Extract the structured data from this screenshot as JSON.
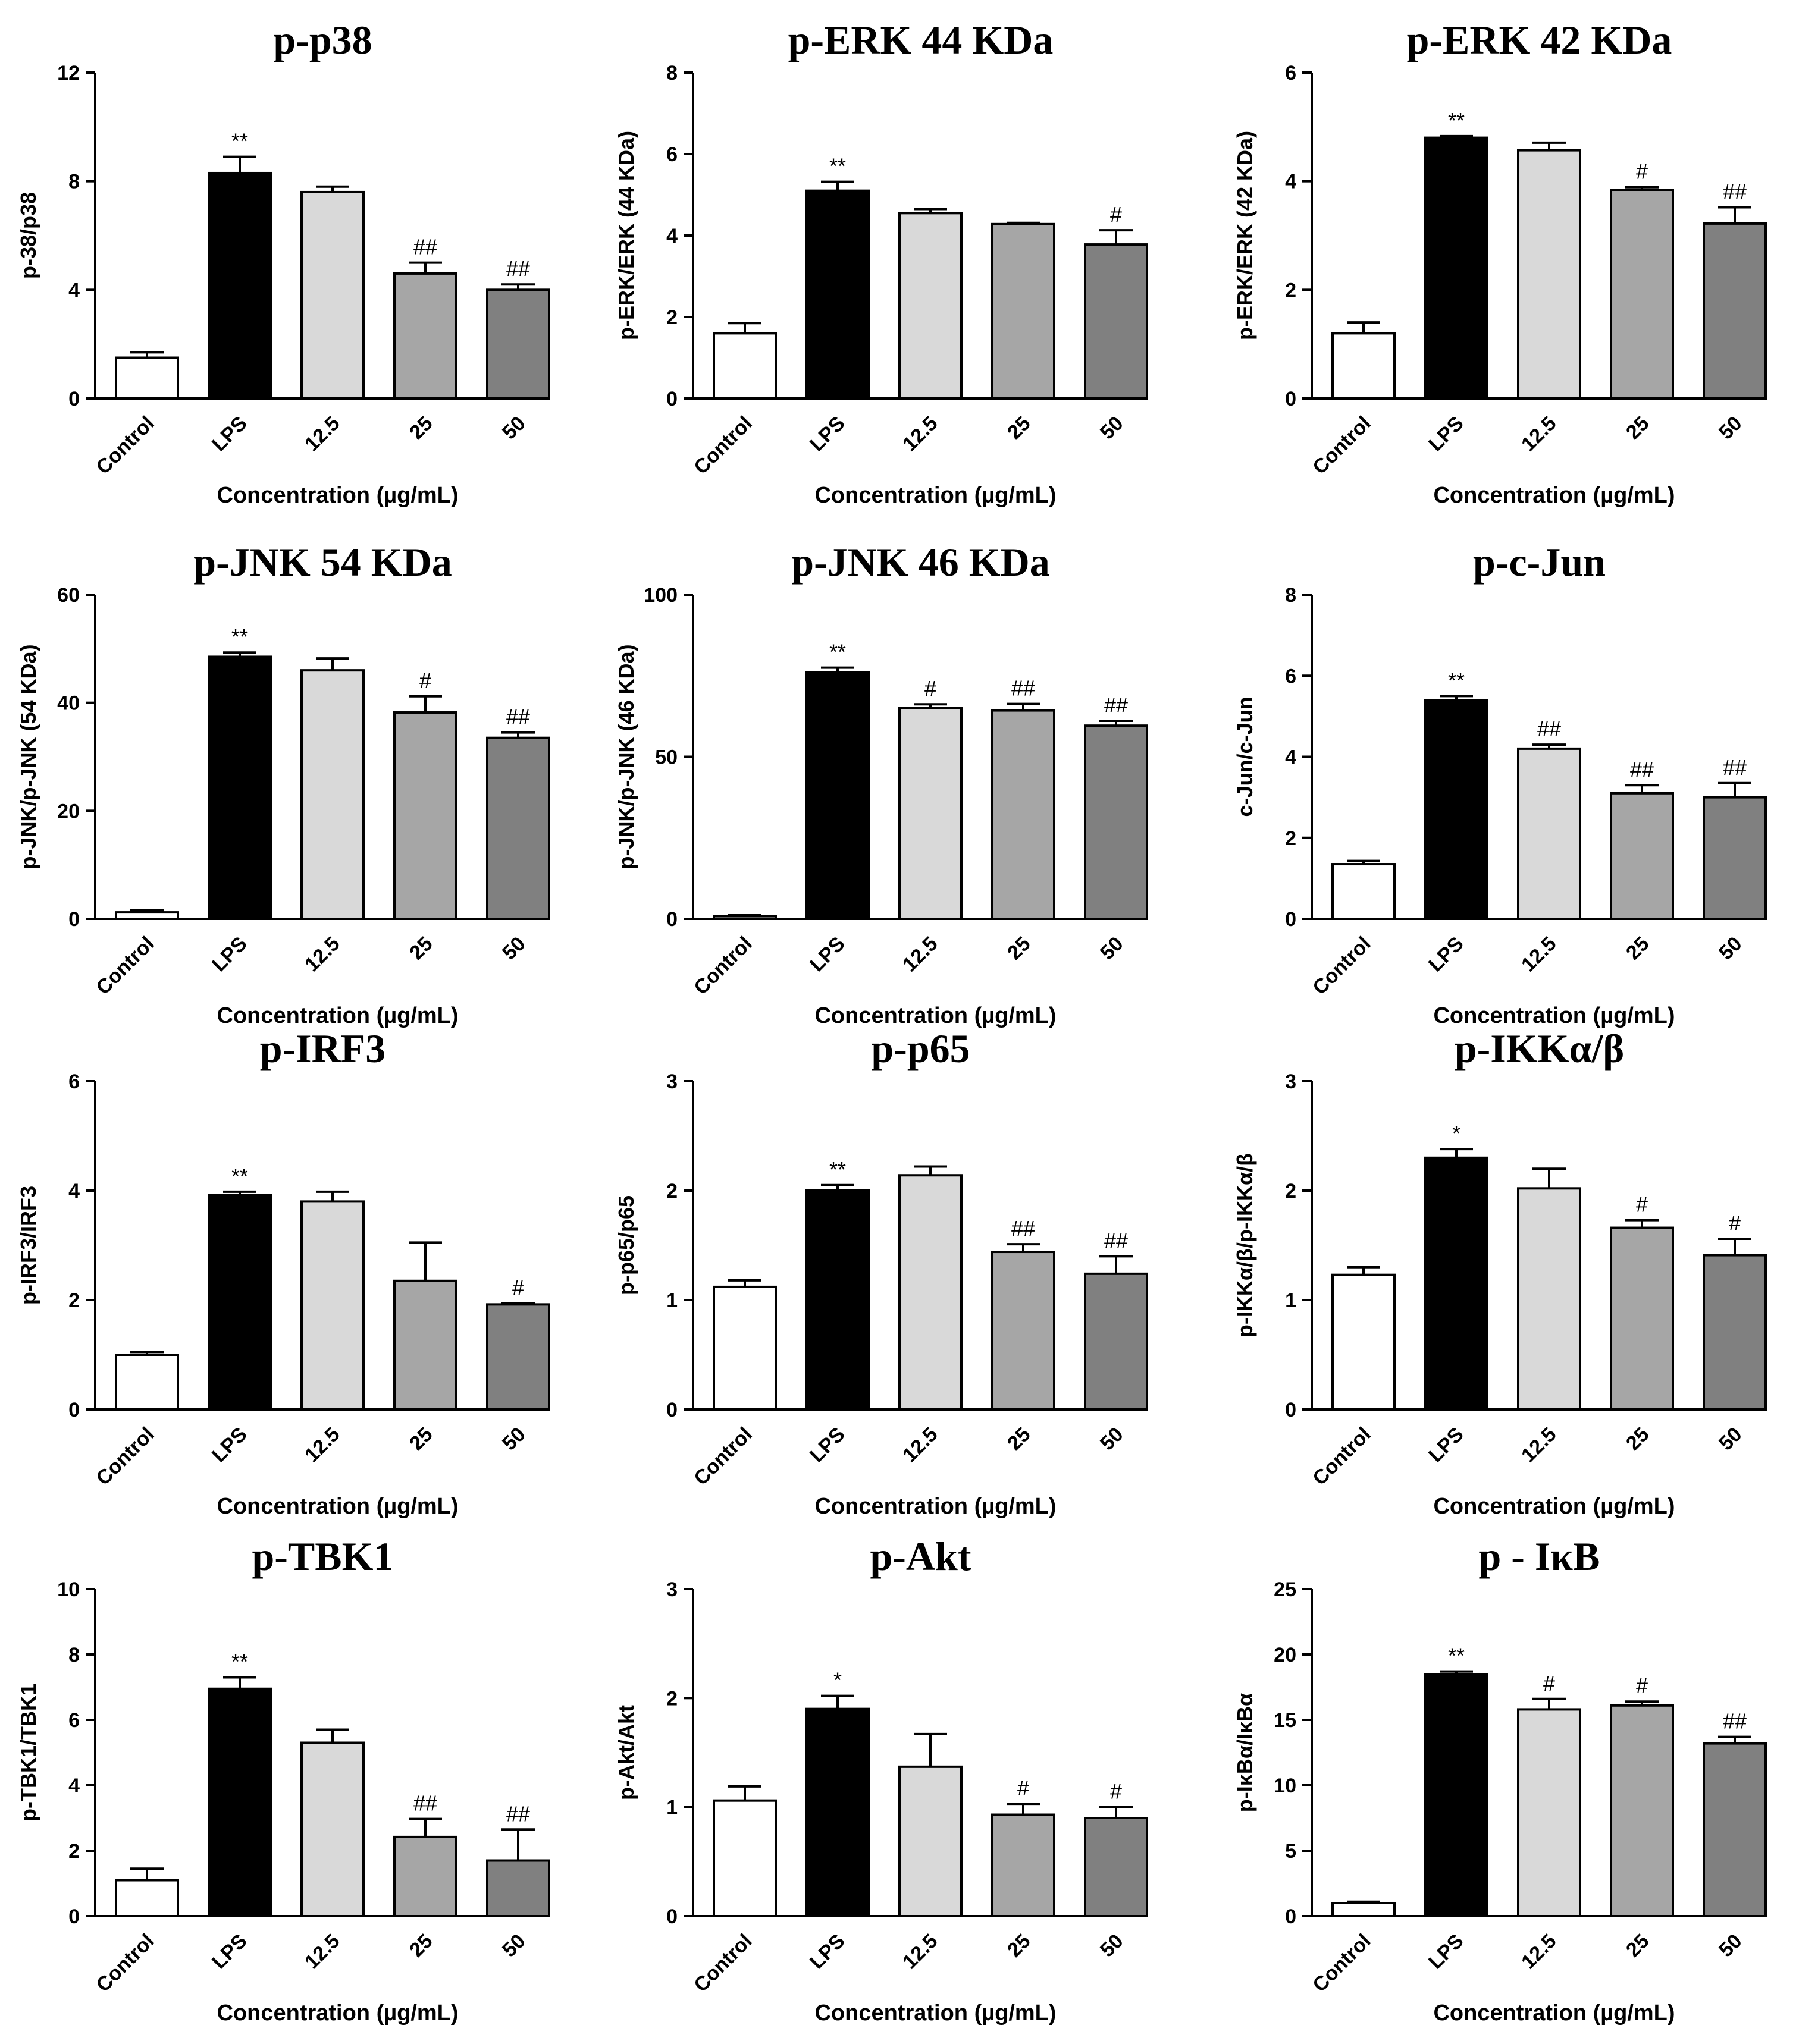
{
  "colors": {
    "Control": "#ffffff",
    "LPS": "#000000",
    "12.5": "#d9d9d9",
    "25": "#a6a6a6",
    "50": "#808080",
    "outline": "#000000"
  },
  "chart_data": [
    {
      "type": "bar",
      "title": "p-p38",
      "ylabel": "p-38/p38",
      "xlabel": "Concentration (µg/mL)",
      "categories": [
        "Control",
        "LPS",
        "12.5",
        "25",
        "50"
      ],
      "values": [
        1.5,
        8.3,
        7.6,
        4.6,
        4.0
      ],
      "errors": [
        0.2,
        0.6,
        0.2,
        0.4,
        0.2
      ],
      "annotations": [
        "",
        "**",
        "",
        "##",
        "##"
      ],
      "ylim": [
        0,
        12
      ],
      "yticks": [
        0,
        4,
        8,
        12
      ]
    },
    {
      "type": "bar",
      "title": "p-ERK 44 KDa",
      "ylabel": "p-ERK/ERK (44 KDa)",
      "xlabel": "Concentration (µg/mL)",
      "categories": [
        "Control",
        "LPS",
        "12.5",
        "25",
        "50"
      ],
      "values": [
        1.6,
        5.1,
        4.55,
        4.28,
        3.78
      ],
      "errors": [
        0.25,
        0.22,
        0.1,
        0.03,
        0.35
      ],
      "annotations": [
        "",
        "**",
        "",
        "",
        "#"
      ],
      "ylim": [
        0,
        8
      ],
      "yticks": [
        0,
        2,
        4,
        6,
        8
      ]
    },
    {
      "type": "bar",
      "title": "p-ERK 42 KDa",
      "ylabel": "p-ERK/ERK (42 KDa)",
      "xlabel": "Concentration (µg/mL)",
      "categories": [
        "Control",
        "LPS",
        "12.5",
        "25",
        "50"
      ],
      "values": [
        1.2,
        4.8,
        4.57,
        3.84,
        3.22
      ],
      "errors": [
        0.2,
        0.03,
        0.14,
        0.05,
        0.3
      ],
      "annotations": [
        "",
        "**",
        "",
        "#",
        "##"
      ],
      "ylim": [
        0,
        6
      ],
      "yticks": [
        0,
        2,
        4,
        6
      ]
    },
    {
      "type": "bar",
      "title": "p-JNK 54 KDa",
      "ylabel": "p-JNK/p-JNK (54 KDa)",
      "xlabel": "Concentration (µg/mL)",
      "categories": [
        "Control",
        "LPS",
        "12.5",
        "25",
        "50"
      ],
      "values": [
        1.2,
        48.5,
        46.0,
        38.2,
        33.5
      ],
      "errors": [
        0.4,
        0.8,
        2.2,
        3.0,
        1.0
      ],
      "annotations": [
        "",
        "**",
        "",
        "#",
        "##"
      ],
      "ylim": [
        0,
        60
      ],
      "yticks": [
        0,
        20,
        40,
        60
      ]
    },
    {
      "type": "bar",
      "title": "p-JNK 46 KDa",
      "ylabel": "p-JNK/p-JNK (46 KDa)",
      "xlabel": "Concentration (µg/mL)",
      "categories": [
        "Control",
        "LPS",
        "12.5",
        "25",
        "50"
      ],
      "values": [
        0.8,
        76.0,
        65.0,
        64.3,
        59.6
      ],
      "errors": [
        0.3,
        1.5,
        1.2,
        2.0,
        1.5
      ],
      "annotations": [
        "",
        "**",
        "#",
        "##",
        "##"
      ],
      "ylim": [
        0,
        100
      ],
      "yticks": [
        0,
        50,
        100
      ]
    },
    {
      "type": "bar",
      "title": "p-c-Jun",
      "ylabel": "c-Jun/c-Jun",
      "xlabel": "Concentration (µg/mL)",
      "categories": [
        "Control",
        "LPS",
        "12.5",
        "25",
        "50"
      ],
      "values": [
        1.35,
        5.4,
        4.2,
        3.1,
        3.0
      ],
      "errors": [
        0.08,
        0.1,
        0.1,
        0.2,
        0.35
      ],
      "annotations": [
        "",
        "**",
        "##",
        "##",
        "##"
      ],
      "ylim": [
        0,
        8
      ],
      "yticks": [
        0,
        2,
        4,
        6,
        8
      ]
    },
    {
      "type": "bar",
      "title": "p-IRF3",
      "ylabel": "p-IRF3/IRF3",
      "xlabel": "Concentration (µg/mL)",
      "categories": [
        "Control",
        "LPS",
        "12.5",
        "25",
        "50"
      ],
      "values": [
        1.0,
        3.92,
        3.8,
        2.35,
        1.92
      ],
      "errors": [
        0.05,
        0.06,
        0.18,
        0.7,
        0.02
      ],
      "annotations": [
        "",
        "**",
        "",
        "",
        "#"
      ],
      "ylim": [
        0,
        6
      ],
      "yticks": [
        0,
        2,
        4,
        6
      ]
    },
    {
      "type": "bar",
      "title": "p-p65",
      "ylabel": "p-p65/p65",
      "xlabel": "Concentration (µg/mL)",
      "categories": [
        "Control",
        "LPS",
        "12.5",
        "25",
        "50"
      ],
      "values": [
        1.12,
        2.0,
        2.14,
        1.44,
        1.24
      ],
      "errors": [
        0.06,
        0.05,
        0.08,
        0.07,
        0.16
      ],
      "annotations": [
        "",
        "**",
        "",
        "##",
        "##"
      ],
      "ylim": [
        0,
        3
      ],
      "yticks": [
        0,
        1,
        2,
        3
      ]
    },
    {
      "type": "bar",
      "title": "p-IKKα/β",
      "ylabel": "p-IKKα/β/p-IKKα/β",
      "xlabel": "Concentration (µg/mL)",
      "categories": [
        "Control",
        "LPS",
        "12.5",
        "25",
        "50"
      ],
      "values": [
        1.23,
        2.3,
        2.02,
        1.66,
        1.41
      ],
      "errors": [
        0.07,
        0.08,
        0.18,
        0.07,
        0.15
      ],
      "annotations": [
        "",
        "*",
        "",
        "#",
        "#"
      ],
      "ylim": [
        0,
        3
      ],
      "yticks": [
        0,
        1,
        2,
        3
      ]
    },
    {
      "type": "bar",
      "title": "p-TBK1",
      "ylabel": "p-TBK1/TBK1",
      "xlabel": "Concentration (µg/mL)",
      "categories": [
        "Control",
        "LPS",
        "12.5",
        "25",
        "50"
      ],
      "values": [
        1.1,
        6.95,
        5.3,
        2.42,
        1.7
      ],
      "errors": [
        0.35,
        0.35,
        0.4,
        0.55,
        0.95
      ],
      "annotations": [
        "",
        "**",
        "",
        "##",
        "##"
      ],
      "ylim": [
        0,
        10
      ],
      "yticks": [
        0,
        2,
        4,
        6,
        8,
        10
      ]
    },
    {
      "type": "bar",
      "title": "p-Akt",
      "ylabel": "p-Akt/Akt",
      "xlabel": "Concentration (µg/mL)",
      "categories": [
        "Control",
        "LPS",
        "12.5",
        "25",
        "50"
      ],
      "values": [
        1.06,
        1.9,
        1.37,
        0.93,
        0.9
      ],
      "errors": [
        0.13,
        0.12,
        0.3,
        0.1,
        0.1
      ],
      "annotations": [
        "",
        "*",
        "",
        "#",
        "#"
      ],
      "ylim": [
        0,
        3
      ],
      "yticks": [
        0,
        1,
        2,
        3
      ]
    },
    {
      "type": "bar",
      "title": "p - IκB",
      "ylabel": "p-IκBα/IκBα",
      "xlabel": "Concentration (µg/mL)",
      "categories": [
        "Control",
        "LPS",
        "12.5",
        "25",
        "50"
      ],
      "values": [
        1.0,
        18.5,
        15.8,
        16.1,
        13.2
      ],
      "errors": [
        0.1,
        0.2,
        0.8,
        0.3,
        0.5
      ],
      "annotations": [
        "",
        "**",
        "#",
        "#",
        "##"
      ],
      "ylim": [
        0,
        25
      ],
      "yticks": [
        0,
        5,
        10,
        15,
        20,
        25
      ]
    }
  ]
}
